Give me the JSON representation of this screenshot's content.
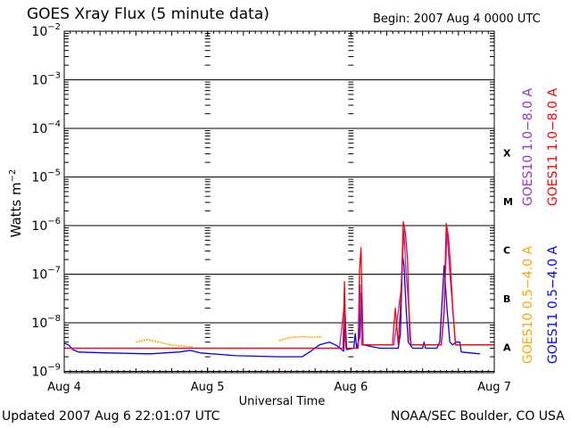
{
  "header": {
    "title": "GOES Xray Flux (5 minute data)",
    "begin": "Begin:  2007 Aug 4 0000 UTC"
  },
  "footer": {
    "updated": "Updated 2007 Aug  6 22:01:07 UTC",
    "credit": "NOAA/SEC Boulder, CO USA"
  },
  "colors": {
    "goes10_long": "#9932cc",
    "goes11_long": "#ff0000",
    "goes10_short": "#ffa500",
    "goes11_short": "#0000ff",
    "axis": "#000000"
  },
  "chart_data": {
    "type": "line",
    "y_scale": "log",
    "title": "GOES Xray Flux (5 minute data)",
    "xlabel": "Universal Time",
    "ylabel": "Watts m⁻²",
    "xlim": [
      "2007-08-04",
      "2007-08-07"
    ],
    "ylim": [
      5e-10,
      0.01
    ],
    "x_ticks": [
      "Aug 4",
      "Aug 5",
      "Aug 6",
      "Aug 7"
    ],
    "y_ticks": [
      {
        "base": "10",
        "exp": "−2",
        "value": 0.01
      },
      {
        "base": "10",
        "exp": "−3",
        "value": 0.001
      },
      {
        "base": "10",
        "exp": "−4",
        "value": 0.0001
      },
      {
        "base": "10",
        "exp": "−5",
        "value": 1e-05
      },
      {
        "base": "10",
        "exp": "−6",
        "value": 1e-06
      },
      {
        "base": "10",
        "exp": "−7",
        "value": 1e-07
      },
      {
        "base": "10",
        "exp": "−8",
        "value": 1e-08
      },
      {
        "base": "10",
        "exp": "−9",
        "value": 1e-09
      }
    ],
    "flare_classes": [
      {
        "label": "X",
        "value": 0.0001
      },
      {
        "label": "M",
        "value": 1e-05
      },
      {
        "label": "C",
        "value": 1e-06
      },
      {
        "label": "B",
        "value": 1e-07
      },
      {
        "label": "A",
        "value": 1e-08
      }
    ],
    "series": [
      {
        "name": "GOES10 1.0−8.0 A",
        "color": "#9932cc",
        "points": [
          [
            0,
            3e-09
          ],
          [
            0.5,
            3e-09
          ],
          [
            1,
            3e-09
          ],
          [
            1.5,
            3e-09
          ],
          [
            1.92,
            3e-09
          ],
          [
            1.955,
            2.5e-08
          ],
          [
            1.965,
            3e-09
          ],
          [
            2.05,
            3e-09
          ],
          [
            2.065,
            6e-08
          ],
          [
            2.075,
            3.5e-09
          ],
          [
            2.3,
            3.5e-09
          ],
          [
            2.35,
            5e-08
          ],
          [
            2.37,
            8e-07
          ],
          [
            2.385,
            1e-07
          ],
          [
            2.4,
            3e-08
          ],
          [
            2.42,
            3.5e-09
          ],
          [
            2.63,
            3.5e-09
          ],
          [
            2.65,
            1.5e-08
          ],
          [
            2.67,
            8e-07
          ],
          [
            2.69,
            1e-07
          ],
          [
            2.71,
            2e-08
          ],
          [
            2.73,
            3.5e-09
          ],
          [
            3,
            3.5e-09
          ]
        ]
      },
      {
        "name": "GOES11 1.0−8.0 A",
        "color": "#ff0000",
        "points": [
          [
            0,
            3e-09
          ],
          [
            0.5,
            3e-09
          ],
          [
            1,
            3e-09
          ],
          [
            1.5,
            3e-09
          ],
          [
            1.9,
            3e-09
          ],
          [
            1.945,
            3e-09
          ],
          [
            1.955,
            7e-08
          ],
          [
            1.965,
            3e-09
          ],
          [
            2.05,
            3e-09
          ],
          [
            2.06,
            1.2e-07
          ],
          [
            2.07,
            3.5e-07
          ],
          [
            2.085,
            3.5e-09
          ],
          [
            2.29,
            3.5e-09
          ],
          [
            2.31,
            2e-08
          ],
          [
            2.33,
            3.5e-09
          ],
          [
            2.35,
            4e-08
          ],
          [
            2.365,
            1.2e-06
          ],
          [
            2.38,
            7e-07
          ],
          [
            2.395,
            2e-07
          ],
          [
            2.41,
            5e-09
          ],
          [
            2.42,
            3.5e-09
          ],
          [
            2.63,
            3.5e-09
          ],
          [
            2.65,
            2e-08
          ],
          [
            2.665,
            1.1e-06
          ],
          [
            2.68,
            6e-07
          ],
          [
            2.695,
            1.5e-07
          ],
          [
            2.71,
            2e-08
          ],
          [
            2.73,
            3.5e-09
          ],
          [
            3,
            3.5e-09
          ]
        ]
      },
      {
        "name": "GOES10 0.5−4.0 A",
        "color": "#ffa500",
        "segments": [
          [
            [
              0.5,
              4e-09
            ],
            [
              0.58,
              4.5e-09
            ],
            [
              0.66,
              4e-09
            ],
            [
              0.74,
              3.5e-09
            ],
            [
              0.82,
              3.3e-09
            ],
            [
              0.9,
              3.2e-09
            ]
          ],
          [
            [
              1.5,
              4.3e-09
            ],
            [
              1.58,
              5e-09
            ],
            [
              1.66,
              5.2e-09
            ],
            [
              1.74,
              5e-09
            ],
            [
              1.8,
              5.2e-09
            ]
          ]
        ]
      },
      {
        "name": "GOES11 0.5−4.0 A",
        "color": "#0000ff",
        "points": [
          [
            0,
            3.8e-09
          ],
          [
            0.03,
            3.5e-09
          ],
          [
            0.06,
            2.8e-09
          ],
          [
            0.1,
            2.5e-09
          ],
          [
            0.3,
            2.4e-09
          ],
          [
            0.6,
            2.3e-09
          ],
          [
            0.8,
            2.5e-09
          ],
          [
            0.88,
            2.7e-09
          ],
          [
            0.95,
            2.4e-09
          ],
          [
            1.2,
            2.1e-09
          ],
          [
            1.5,
            2e-09
          ],
          [
            1.66,
            2e-09
          ],
          [
            1.72,
            2.6e-09
          ],
          [
            1.78,
            3.5e-09
          ],
          [
            1.85,
            4e-09
          ],
          [
            1.9,
            3.4e-09
          ],
          [
            1.95,
            2.6e-09
          ],
          [
            1.96,
            1.5e-08
          ],
          [
            1.97,
            2.8e-09
          ],
          [
            2.02,
            3e-09
          ],
          [
            2.03,
            6e-09
          ],
          [
            2.04,
            3e-09
          ],
          [
            2.06,
            5e-09
          ],
          [
            2.07,
            4e-08
          ],
          [
            2.085,
            3.5e-09
          ],
          [
            2.2,
            3e-09
          ],
          [
            2.33,
            3e-09
          ],
          [
            2.345,
            6e-09
          ],
          [
            2.36,
            2.5e-07
          ],
          [
            2.37,
            1.5e-07
          ],
          [
            2.385,
            2e-08
          ],
          [
            2.4,
            4e-09
          ],
          [
            2.43,
            3e-09
          ],
          [
            2.5,
            3e-09
          ],
          [
            2.51,
            4e-09
          ],
          [
            2.52,
            3e-09
          ],
          [
            2.6,
            3e-09
          ],
          [
            2.62,
            4e-09
          ],
          [
            2.65,
            1.5e-07
          ],
          [
            2.67,
            2e-08
          ],
          [
            2.69,
            4e-09
          ],
          [
            2.71,
            3.5e-09
          ],
          [
            2.73,
            4e-09
          ],
          [
            2.76,
            4e-09
          ],
          [
            2.77,
            2.5e-09
          ],
          [
            2.9,
            2.3e-09
          ]
        ]
      }
    ]
  }
}
